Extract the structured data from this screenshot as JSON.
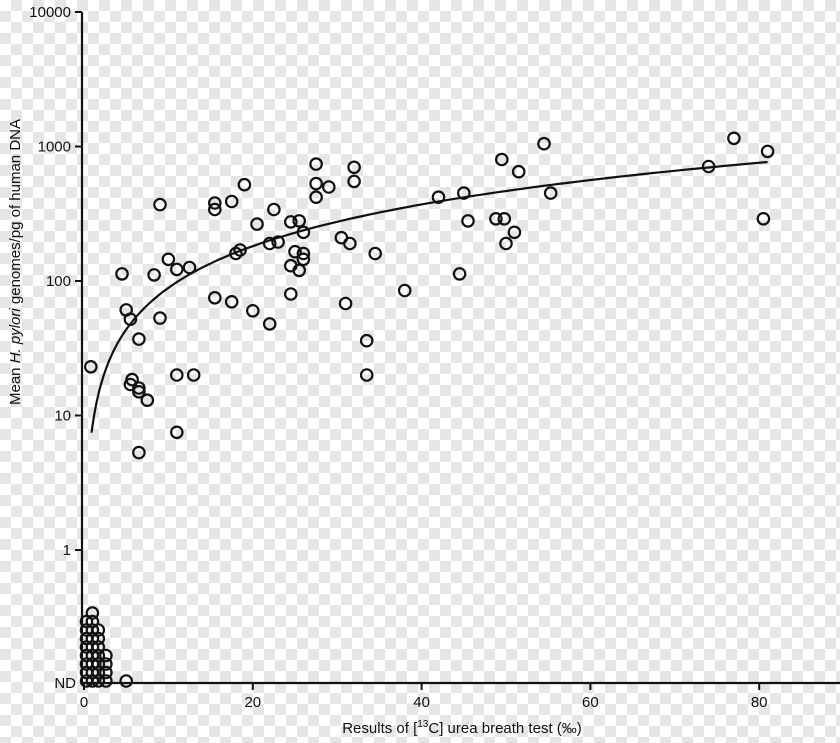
{
  "chart_data": {
    "type": "scatter",
    "xlabel": "Results of [13C] urea breath test (‰)",
    "xlabel_parts": {
      "before": "Results of [",
      "superscript": "13",
      "after": "C] urea breath test (‰)"
    },
    "ylabel": "Mean H. pylori genomes/pg of human DNA",
    "ylabel_parts": {
      "before": "Mean ",
      "italic": "H. pylori",
      "after": " genomes/pg of human DNA"
    },
    "x_scale": "linear",
    "y_scale": "log",
    "xlim": [
      0,
      90
    ],
    "ylim": [
      0.1,
      10000
    ],
    "x_ticks": [
      0,
      20,
      40,
      60,
      80
    ],
    "x_tick_labels": [
      "0",
      "20",
      "40",
      "60",
      "80"
    ],
    "y_ticks": [
      1,
      10,
      100,
      1000,
      10000
    ],
    "y_tick_labels": [
      "1",
      "10",
      "100",
      "1000",
      "10000"
    ],
    "y_nd_label": "ND",
    "grid": false,
    "marker_color": "#111111",
    "detected_points": [
      [
        0.8,
        23
      ],
      [
        4.5,
        113
      ],
      [
        5,
        61
      ],
      [
        5.5,
        52
      ],
      [
        5.5,
        17
      ],
      [
        5.7,
        18.5
      ],
      [
        6.5,
        37
      ],
      [
        6.5,
        16
      ],
      [
        6.5,
        15
      ],
      [
        6.5,
        5.3
      ],
      [
        7.5,
        13
      ],
      [
        8.3,
        111
      ],
      [
        9,
        370
      ],
      [
        9,
        53
      ],
      [
        10,
        145
      ],
      [
        11,
        20
      ],
      [
        11,
        122
      ],
      [
        11,
        7.5
      ],
      [
        12.5,
        126
      ],
      [
        13,
        20
      ],
      [
        15.5,
        75
      ],
      [
        15.5,
        380
      ],
      [
        15.5,
        340
      ],
      [
        17.5,
        70
      ],
      [
        17.5,
        390
      ],
      [
        18,
        160
      ],
      [
        18.5,
        170
      ],
      [
        19,
        520
      ],
      [
        20,
        60
      ],
      [
        20.5,
        265
      ],
      [
        22,
        190
      ],
      [
        22,
        48
      ],
      [
        22.5,
        340
      ],
      [
        23,
        195
      ],
      [
        24.5,
        130
      ],
      [
        24.5,
        275
      ],
      [
        24.5,
        80
      ],
      [
        25,
        165
      ],
      [
        25.5,
        280
      ],
      [
        25.5,
        120
      ],
      [
        26,
        160
      ],
      [
        26,
        145
      ],
      [
        26,
        230
      ],
      [
        27.5,
        740
      ],
      [
        27.5,
        530
      ],
      [
        27.5,
        420
      ],
      [
        29,
        500
      ],
      [
        30.5,
        210
      ],
      [
        31,
        68
      ],
      [
        31.5,
        190
      ],
      [
        32,
        700
      ],
      [
        32,
        550
      ],
      [
        33.5,
        36
      ],
      [
        33.5,
        20
      ],
      [
        34.5,
        160
      ],
      [
        38,
        85
      ],
      [
        42,
        420
      ],
      [
        44.5,
        113
      ],
      [
        45,
        450
      ],
      [
        45.5,
        280
      ],
      [
        48.8,
        290
      ],
      [
        49.5,
        800
      ],
      [
        49.8,
        290
      ],
      [
        50,
        190
      ],
      [
        51,
        230
      ],
      [
        51.5,
        650
      ],
      [
        54.5,
        1050
      ],
      [
        55.3,
        450
      ],
      [
        74,
        710
      ],
      [
        77,
        1150
      ],
      [
        80.5,
        290
      ],
      [
        81,
        920
      ]
    ],
    "nd_points": [
      [
        0.3,
        0
      ],
      [
        0.3,
        1
      ],
      [
        0.3,
        2
      ],
      [
        0.3,
        3
      ],
      [
        0.3,
        4
      ],
      [
        0.3,
        5
      ],
      [
        0.3,
        6
      ],
      [
        0.3,
        7
      ],
      [
        1.0,
        0
      ],
      [
        1.0,
        1
      ],
      [
        1.0,
        2
      ],
      [
        1.0,
        3
      ],
      [
        1.0,
        4
      ],
      [
        1.0,
        5
      ],
      [
        1.0,
        6
      ],
      [
        1.0,
        7
      ],
      [
        1.0,
        8
      ],
      [
        1.7,
        0
      ],
      [
        1.7,
        1
      ],
      [
        1.7,
        2
      ],
      [
        1.7,
        3
      ],
      [
        1.7,
        4
      ],
      [
        1.7,
        5
      ],
      [
        1.7,
        6
      ],
      [
        2.6,
        0
      ],
      [
        2.6,
        1
      ],
      [
        2.6,
        2
      ],
      [
        2.6,
        3
      ],
      [
        5.0,
        0
      ]
    ],
    "fit_curve": {
      "type": "power",
      "equation": "y = 8.3 * x^1.03",
      "x_range": [
        0.9,
        81
      ]
    }
  }
}
